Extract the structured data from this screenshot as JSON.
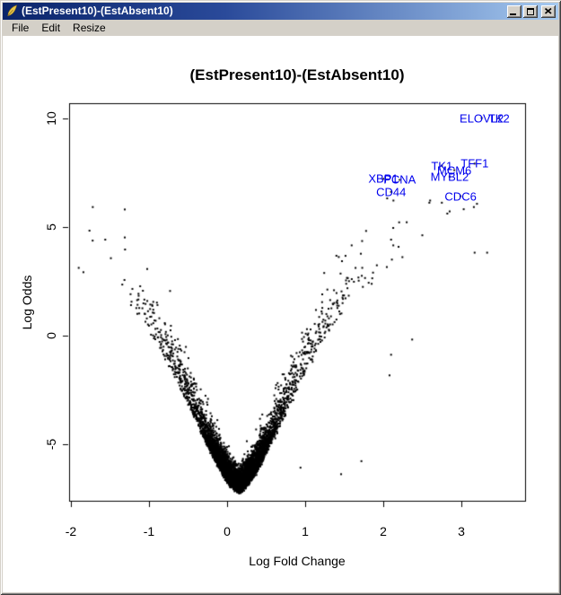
{
  "window": {
    "title": "(EstPresent10)-(EstAbsent10)",
    "icon": "feather-icon"
  },
  "menubar": {
    "items": [
      "File",
      "Edit",
      "Resize"
    ]
  },
  "colors": {
    "chrome": "#D4D0C8",
    "titlebar_start": "#0A246A",
    "titlebar_end": "#A6CAF0",
    "title_text": "#FFFFFF",
    "plot_background": "#FFFFFF",
    "point_color": "#000000",
    "gene_label_color": "#0000EE"
  },
  "chart_data": {
    "type": "scatter",
    "subtype": "volcano-plot",
    "title": "(EstPresent10)-(EstAbsent10)",
    "xlabel": "Log Fold Change",
    "ylabel": "Log Odds",
    "xticks": [
      -2,
      -1,
      0,
      1,
      2,
      3
    ],
    "yticks": [
      -5,
      0,
      5,
      10
    ],
    "xlim": [
      -2.05,
      3.8
    ],
    "ylim": [
      -7.6,
      10.7
    ],
    "grid": false,
    "legend": null,
    "labeled_points": [
      {
        "gene": "ELOVL2",
        "x": 3.26,
        "y": 10.0
      },
      {
        "gene": "TK2",
        "x": 3.48,
        "y": 10.0
      },
      {
        "gene": "TK1",
        "x": 2.75,
        "y": 7.8
      },
      {
        "gene": "MCM6",
        "x": 2.91,
        "y": 7.6
      },
      {
        "gene": "TFF1",
        "x": 3.17,
        "y": 7.9
      },
      {
        "gene": "MYBL2",
        "x": 2.85,
        "y": 7.3
      },
      {
        "gene": "CDC6",
        "x": 2.99,
        "y": 6.4
      },
      {
        "gene": "XBP1",
        "x": 2.0,
        "y": 7.2
      },
      {
        "gene": "PCNA",
        "x": 2.21,
        "y": 7.15
      },
      {
        "gene": "CD44",
        "x": 2.1,
        "y": 6.6
      }
    ],
    "outlier_points": [
      [
        2.6,
        6.2
      ],
      [
        2.82,
        5.6
      ],
      [
        3.03,
        5.8
      ],
      [
        3.16,
        5.9
      ],
      [
        3.17,
        3.8
      ],
      [
        2.59,
        6.1
      ],
      [
        2.1,
        4.4
      ],
      [
        2.37,
        -0.2
      ],
      [
        2.1,
        -0.9
      ],
      [
        2.08,
        -1.85
      ],
      [
        1.78,
        4.8
      ],
      [
        1.43,
        3.6
      ],
      [
        1.46,
        -6.4
      ],
      [
        1.72,
        -5.8
      ],
      [
        0.94,
        -6.1
      ],
      [
        -1.72,
        5.9
      ],
      [
        -1.56,
        4.4
      ],
      [
        -1.31,
        4.5
      ],
      [
        -1.9,
        3.1
      ],
      [
        -1.84,
        2.9
      ],
      [
        2.05,
        6.3
      ],
      [
        2.13,
        6.2
      ],
      [
        3.2,
        6.05
      ],
      [
        2.75,
        6.1
      ],
      [
        2.85,
        5.7
      ],
      [
        3.33,
        3.8
      ],
      [
        2.5,
        4.6
      ],
      [
        2.3,
        5.2
      ]
    ],
    "cloud": {
      "description": "dense V-shaped null-gene cloud, vertex near (0.15, -7.15)",
      "n": 6500,
      "seed": 11,
      "center": 0.15,
      "p_core": 0.76,
      "sd_core": 0.21,
      "p_mid": 0.17,
      "sd_mid": 0.45,
      "tail_base": 0.45,
      "tail_sd_pos": 0.6,
      "tail_sd_neg": 0.48,
      "floor": -7.15,
      "amp": 11.2,
      "rate": 0.85,
      "pow": 1.55,
      "noise_base": 0.42,
      "noise_span": 0.9,
      "xmin": -1.98,
      "xmax": 3.55,
      "ymax": 10.35
    }
  }
}
